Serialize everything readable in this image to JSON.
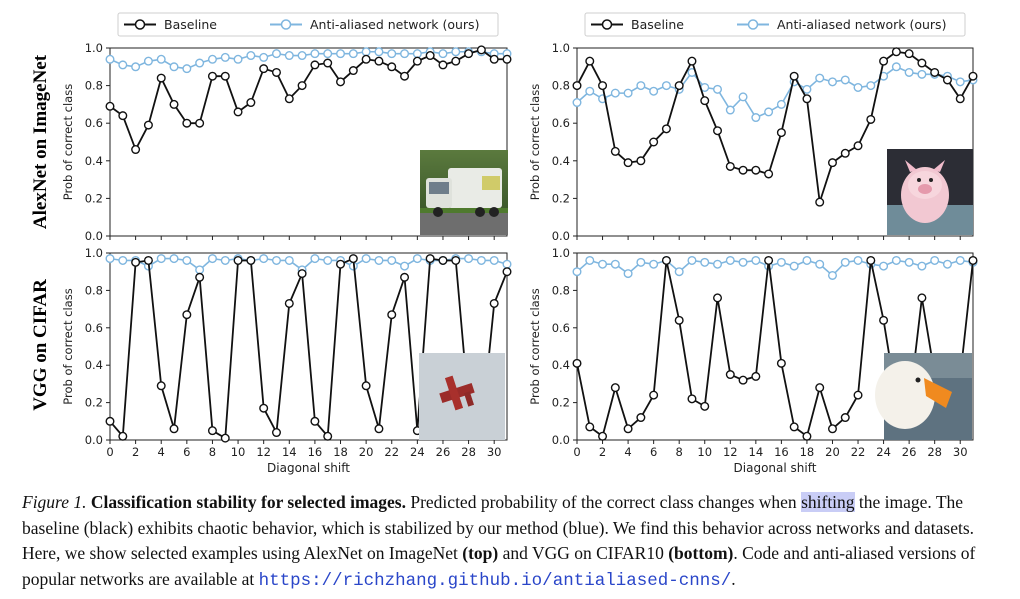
{
  "row_labels": [
    "AlexNet on ImageNet",
    "VGG on CIFAR"
  ],
  "legend": {
    "baseline": "Baseline",
    "antialiased": "Anti-aliased network (ours)"
  },
  "axis_labels": {
    "ylabel": "Prob of correct class",
    "xlabel": "Diagonal shift"
  },
  "colors": {
    "baseline": "#111111",
    "antialiased": "#7fb6df"
  },
  "thumbnails": [
    "garbage-truck-photo",
    "pink-pig-toy-photo",
    "red-airplane-image",
    "white-goose-photo"
  ],
  "chart_data": [
    {
      "type": "line",
      "panel": "top-left",
      "x": [
        0,
        1,
        2,
        3,
        4,
        5,
        6,
        7,
        8,
        9,
        10,
        11,
        12,
        13,
        14,
        15,
        16,
        17,
        18,
        19,
        20,
        21,
        22,
        23,
        24,
        25,
        26,
        27,
        28,
        29,
        30,
        31
      ],
      "xlim": [
        0,
        31
      ],
      "ylim": [
        0,
        1.0
      ],
      "xticks": [
        0,
        2,
        4,
        6,
        8,
        10,
        12,
        14,
        16,
        18,
        20,
        22,
        24,
        26,
        28,
        30
      ],
      "yticks": [
        0.0,
        0.2,
        0.4,
        0.6,
        0.8,
        1.0
      ],
      "series": [
        {
          "name": "Baseline",
          "values": [
            0.69,
            0.64,
            0.46,
            0.59,
            0.84,
            0.7,
            0.6,
            0.6,
            0.85,
            0.85,
            0.66,
            0.71,
            0.89,
            0.87,
            0.73,
            0.8,
            0.91,
            0.92,
            0.82,
            0.88,
            0.94,
            0.93,
            0.9,
            0.85,
            0.93,
            0.96,
            0.91,
            0.93,
            0.97,
            0.99,
            0.94,
            0.94
          ]
        },
        {
          "name": "Anti-aliased network (ours)",
          "values": [
            0.94,
            0.91,
            0.9,
            0.93,
            0.94,
            0.9,
            0.89,
            0.92,
            0.94,
            0.95,
            0.94,
            0.96,
            0.95,
            0.97,
            0.96,
            0.96,
            0.97,
            0.97,
            0.97,
            0.97,
            0.98,
            0.98,
            0.97,
            0.97,
            0.97,
            0.98,
            0.97,
            0.98,
            0.98,
            0.98,
            0.97,
            0.97
          ]
        }
      ]
    },
    {
      "type": "line",
      "panel": "top-right",
      "x": [
        0,
        1,
        2,
        3,
        4,
        5,
        6,
        7,
        8,
        9,
        10,
        11,
        12,
        13,
        14,
        15,
        16,
        17,
        18,
        19,
        20,
        21,
        22,
        23,
        24,
        25,
        26,
        27,
        28,
        29,
        30,
        31
      ],
      "xlim": [
        0,
        31
      ],
      "ylim": [
        0,
        1.0
      ],
      "xticks": [
        0,
        2,
        4,
        6,
        8,
        10,
        12,
        14,
        16,
        18,
        20,
        22,
        24,
        26,
        28,
        30
      ],
      "yticks": [
        0.0,
        0.2,
        0.4,
        0.6,
        0.8,
        1.0
      ],
      "series": [
        {
          "name": "Baseline",
          "values": [
            0.8,
            0.93,
            0.8,
            0.45,
            0.39,
            0.4,
            0.5,
            0.57,
            0.8,
            0.93,
            0.72,
            0.56,
            0.37,
            0.35,
            0.35,
            0.33,
            0.55,
            0.85,
            0.73,
            0.18,
            0.39,
            0.44,
            0.48,
            0.62,
            0.93,
            0.98,
            0.97,
            0.92,
            0.87,
            0.83,
            0.73,
            0.85
          ]
        },
        {
          "name": "Anti-aliased network (ours)",
          "values": [
            0.71,
            0.77,
            0.73,
            0.76,
            0.76,
            0.8,
            0.77,
            0.8,
            0.78,
            0.87,
            0.79,
            0.78,
            0.67,
            0.74,
            0.63,
            0.66,
            0.7,
            0.82,
            0.78,
            0.84,
            0.82,
            0.83,
            0.79,
            0.8,
            0.85,
            0.9,
            0.87,
            0.86,
            0.86,
            0.85,
            0.82,
            0.83
          ]
        }
      ]
    },
    {
      "type": "line",
      "panel": "bottom-left",
      "x": [
        0,
        1,
        2,
        3,
        4,
        5,
        6,
        7,
        8,
        9,
        10,
        11,
        12,
        13,
        14,
        15,
        16,
        17,
        18,
        19,
        20,
        21,
        22,
        23,
        24,
        25,
        26,
        27,
        28,
        29,
        30,
        31
      ],
      "xlim": [
        0,
        31
      ],
      "ylim": [
        0,
        1.0
      ],
      "xticks": [
        0,
        2,
        4,
        6,
        8,
        10,
        12,
        14,
        16,
        18,
        20,
        22,
        24,
        26,
        28,
        30
      ],
      "yticks": [
        0.0,
        0.2,
        0.4,
        0.6,
        0.8,
        1.0
      ],
      "series": [
        {
          "name": "Baseline",
          "values": [
            0.1,
            0.02,
            0.95,
            0.96,
            0.29,
            0.06,
            0.67,
            0.87,
            0.05,
            0.01,
            0.96,
            0.96,
            0.17,
            0.04,
            0.73,
            0.89,
            0.1,
            0.02,
            0.94,
            0.97,
            0.29,
            0.06,
            0.67,
            0.87,
            0.05,
            0.97,
            0.96,
            0.96,
            0.18,
            0.05,
            0.73,
            0.9
          ]
        },
        {
          "name": "Anti-aliased network (ours)",
          "values": [
            0.97,
            0.96,
            0.96,
            0.93,
            0.97,
            0.97,
            0.96,
            0.91,
            0.97,
            0.96,
            0.97,
            0.96,
            0.97,
            0.96,
            0.96,
            0.91,
            0.97,
            0.96,
            0.96,
            0.93,
            0.97,
            0.96,
            0.96,
            0.93,
            0.97,
            0.96,
            0.96,
            0.97,
            0.97,
            0.96,
            0.96,
            0.94
          ]
        }
      ]
    },
    {
      "type": "line",
      "panel": "bottom-right",
      "x": [
        0,
        1,
        2,
        3,
        4,
        5,
        6,
        7,
        8,
        9,
        10,
        11,
        12,
        13,
        14,
        15,
        16,
        17,
        18,
        19,
        20,
        21,
        22,
        23,
        24,
        25,
        26,
        27,
        28,
        29,
        30,
        31
      ],
      "xlim": [
        0,
        31
      ],
      "ylim": [
        0,
        1.0
      ],
      "xticks": [
        0,
        2,
        4,
        6,
        8,
        10,
        12,
        14,
        16,
        18,
        20,
        22,
        24,
        26,
        28,
        30
      ],
      "yticks": [
        0.0,
        0.2,
        0.4,
        0.6,
        0.8,
        1.0
      ],
      "series": [
        {
          "name": "Baseline",
          "values": [
            0.41,
            0.07,
            0.02,
            0.28,
            0.06,
            0.12,
            0.24,
            0.96,
            0.64,
            0.22,
            0.18,
            0.76,
            0.35,
            0.32,
            0.34,
            0.96,
            0.41,
            0.07,
            0.02,
            0.28,
            0.06,
            0.12,
            0.24,
            0.96,
            0.64,
            0.22,
            0.18,
            0.76,
            0.35,
            0.32,
            0.34,
            0.96
          ]
        },
        {
          "name": "Anti-aliased network (ours)",
          "values": [
            0.9,
            0.96,
            0.94,
            0.94,
            0.89,
            0.95,
            0.94,
            0.96,
            0.9,
            0.96,
            0.95,
            0.94,
            0.96,
            0.95,
            0.96,
            0.93,
            0.95,
            0.93,
            0.96,
            0.94,
            0.88,
            0.95,
            0.96,
            0.94,
            0.93,
            0.96,
            0.95,
            0.93,
            0.96,
            0.94,
            0.96,
            0.95
          ]
        }
      ]
    }
  ],
  "caption": {
    "label": "Figure 1.",
    "title": "Classification stability for selected images.",
    "text_1": "Predicted probability of the correct class changes when",
    "highlight": "shifting",
    "text_2": "the image. The baseline (black) exhibits chaotic behavior, which is stabilized by our method (blue). We find this behavior across networks and datasets. Here, we show selected examples using AlexNet on ImageNet",
    "top": "(top)",
    "text_3": "and VGG on CIFAR10",
    "bottom": "(bottom)",
    "text_4": ". Code and anti-aliased versions of popular networks are available at",
    "url": "https://richzhang.github.io/antialiased-cnns/",
    "end": "."
  }
}
